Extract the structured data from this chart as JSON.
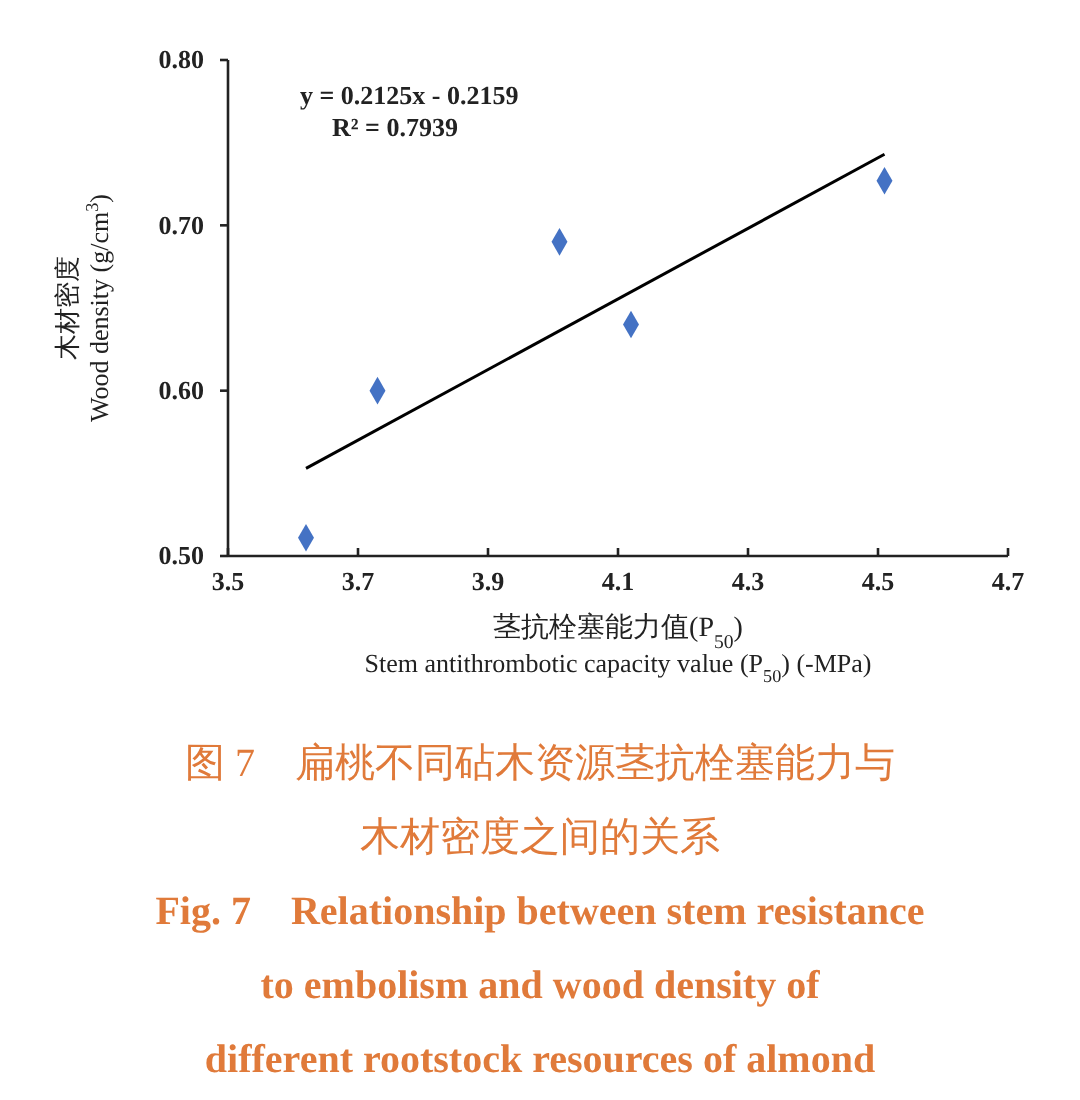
{
  "chart_data": {
    "type": "scatter",
    "title": "图 7　扁桃不同砧木资源茎抗栓塞能力与木材密度之间的关系",
    "subtitle": "Fig. 7　Relationship between stem resistance\nto embolism and wood density of\ndifferent rootstock resources of almond",
    "xlabel": "茎抗栓塞能力值(P$_{50}$)\nStem antithrombotic capacity value (P$_{50}$) (-MPa)",
    "ylabel": "木材密度\nWood density (g/cm$^{3}$)",
    "annotations": [
      "y = 0.2125x - 0.2159",
      "R² = 0.7939"
    ],
    "xlim": [
      3.5,
      4.7
    ],
    "xticks": [
      3.5,
      3.7,
      3.9,
      4.1,
      4.3,
      4.5,
      4.7
    ],
    "ylim": [
      0.5,
      0.8
    ],
    "yticks": [
      {
        "value": 0.5,
        "label": "0.50"
      },
      {
        "value": 0.6,
        "label": "0.60"
      },
      {
        "value": 0.7,
        "label": "0.70"
      },
      {
        "value": 0.8,
        "label": "0.80"
      }
    ],
    "grid": false,
    "marker": "diamond",
    "series": [
      {
        "color": "#4472c4",
        "x": [
          3.62,
          3.73,
          4.01,
          4.12,
          4.51
        ],
        "values": [
          0.511,
          0.6,
          0.69,
          0.64,
          0.727
        ]
      },
      {
        "type": "line",
        "color": "#000000",
        "marker": "none",
        "line_style": "solid",
        "x": [
          3.62,
          4.51
        ],
        "values": [
          0.553,
          0.743
        ]
      }
    ]
  }
}
